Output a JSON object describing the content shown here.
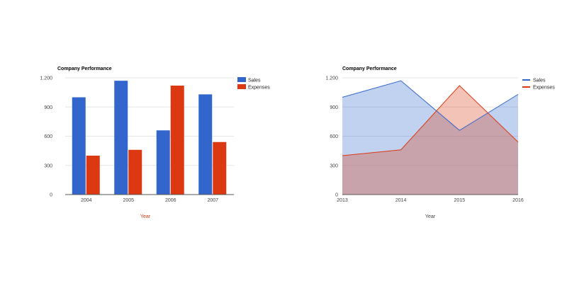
{
  "colors": {
    "sales": "#3366cc",
    "expenses": "#dc3912",
    "grid": "#e6e6e6",
    "axis": "#333333",
    "tick": "#444444"
  },
  "chart_data": [
    {
      "type": "bar",
      "title": "Company Performance",
      "xlabel": "Year",
      "xlabel_color": "#dc3912",
      "ylabel": "",
      "categories": [
        "2004",
        "2005",
        "2006",
        "2007"
      ],
      "series": [
        {
          "name": "Sales",
          "values": [
            1000,
            1170,
            660,
            1030
          ]
        },
        {
          "name": "Expenses",
          "values": [
            400,
            460,
            1120,
            540
          ]
        }
      ],
      "ylim": [
        0,
        1200
      ],
      "yticks": [
        0,
        300,
        600,
        900,
        1200
      ],
      "ytick_labels": [
        "0",
        "300",
        "600",
        "900",
        "1.200"
      ],
      "grid": true,
      "legend": "right"
    },
    {
      "type": "area",
      "title": "Company Performance",
      "xlabel": "Year",
      "xlabel_color": "#444444",
      "ylabel": "",
      "categories": [
        "2013",
        "2014",
        "2015",
        "2016"
      ],
      "series": [
        {
          "name": "Sales",
          "values": [
            1000,
            1170,
            660,
            1030
          ]
        },
        {
          "name": "Expenses",
          "values": [
            400,
            460,
            1120,
            540
          ]
        }
      ],
      "ylim": [
        0,
        1200
      ],
      "yticks": [
        0,
        300,
        600,
        900,
        1200
      ],
      "ytick_labels": [
        "0",
        "300",
        "600",
        "900",
        "1.200"
      ],
      "grid": true,
      "legend": "right"
    }
  ]
}
